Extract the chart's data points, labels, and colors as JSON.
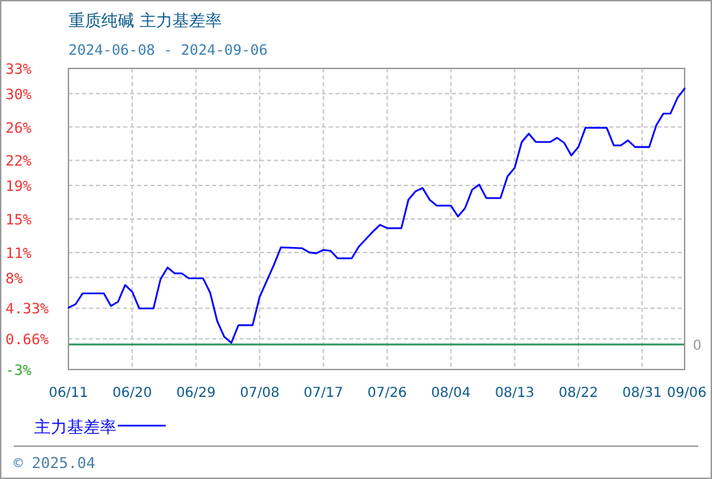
{
  "chart_data": {
    "type": "line",
    "title": "重质纯碱 主力基差率",
    "subtitle": "2024-06-08 - 2024-09-06",
    "annotations": [
      "© 2025.04"
    ],
    "x": [
      "2024-06-11",
      "2024-06-12",
      "2024-06-13",
      "2024-06-16",
      "2024-06-17",
      "2024-06-18",
      "2024-06-19",
      "2024-06-20",
      "2024-06-21",
      "2024-06-23",
      "2024-06-24",
      "2024-06-25",
      "2024-06-26",
      "2024-06-27",
      "2024-06-28",
      "2024-06-30",
      "2024-07-01",
      "2024-07-02",
      "2024-07-03",
      "2024-07-04",
      "2024-07-05",
      "2024-07-07",
      "2024-07-08",
      "2024-07-09",
      "2024-07-10",
      "2024-07-11",
      "2024-07-14",
      "2024-07-15",
      "2024-07-16",
      "2024-07-17",
      "2024-07-18",
      "2024-07-19",
      "2024-07-21",
      "2024-07-22",
      "2024-07-24",
      "2024-07-25",
      "2024-07-26",
      "2024-07-28",
      "2024-07-29",
      "2024-07-30",
      "2024-07-31",
      "2024-08-01",
      "2024-08-02",
      "2024-08-04",
      "2024-08-05",
      "2024-08-06",
      "2024-08-07",
      "2024-08-08",
      "2024-08-09",
      "2024-08-11",
      "2024-08-12",
      "2024-08-13",
      "2024-08-14",
      "2024-08-15",
      "2024-08-16",
      "2024-08-18",
      "2024-08-19",
      "2024-08-20",
      "2024-08-21",
      "2024-08-22",
      "2024-08-23",
      "2024-08-26",
      "2024-08-27",
      "2024-08-28",
      "2024-08-29",
      "2024-08-30",
      "2024-09-01",
      "2024-09-02",
      "2024-09-03",
      "2024-09-04",
      "2024-09-05",
      "2024-09-06"
    ],
    "series": [
      {
        "name": "主力基差率",
        "color": "#0000ff",
        "values": [
          4.4,
          4.8,
          6.1,
          6.1,
          4.6,
          5.1,
          7.1,
          6.3,
          4.3,
          4.3,
          7.8,
          9.2,
          8.5,
          8.5,
          7.9,
          7.9,
          6.2,
          2.8,
          0.9,
          0.2,
          2.3,
          2.3,
          5.7,
          7.6,
          9.5,
          11.6,
          11.5,
          11.0,
          10.9,
          11.3,
          11.2,
          10.3,
          10.3,
          11.7,
          13.5,
          14.3,
          13.9,
          13.9,
          17.3,
          18.3,
          18.7,
          17.3,
          16.6,
          16.6,
          15.3,
          16.3,
          18.5,
          19.1,
          17.5,
          17.5,
          20.1,
          21.1,
          24.2,
          25.2,
          24.2,
          24.2,
          24.7,
          24.1,
          22.6,
          23.6,
          25.9,
          25.9,
          23.8,
          23.8,
          24.4,
          23.6,
          23.6,
          26.2,
          27.6,
          27.6,
          29.5,
          30.6
        ]
      }
    ],
    "xlim": [
      "2024-06-11",
      "2024-09-06"
    ],
    "xticks": [
      {
        "value": "2024-06-11",
        "label": "06/11"
      },
      {
        "value": "2024-06-20",
        "label": "06/20"
      },
      {
        "value": "2024-06-29",
        "label": "06/29"
      },
      {
        "value": "2024-07-08",
        "label": "07/08"
      },
      {
        "value": "2024-07-17",
        "label": "07/17"
      },
      {
        "value": "2024-07-26",
        "label": "07/26"
      },
      {
        "value": "2024-08-04",
        "label": "08/04"
      },
      {
        "value": "2024-08-13",
        "label": "08/13"
      },
      {
        "value": "2024-08-22",
        "label": "08/22"
      },
      {
        "value": "2024-08-31",
        "label": "08/31"
      },
      {
        "value": "2024-09-06",
        "label": "09/06"
      }
    ],
    "ylim": [
      -3,
      33
    ],
    "yticks": [
      {
        "value": -3,
        "label": "-3%"
      },
      {
        "value": 0.66,
        "label": "0.66%"
      },
      {
        "value": 4.33,
        "label": "4.33%"
      },
      {
        "value": 8,
        "label": "8%"
      },
      {
        "value": 11,
        "label": "11%"
      },
      {
        "value": 15,
        "label": "15%"
      },
      {
        "value": 19,
        "label": "19%"
      },
      {
        "value": 22,
        "label": "22%"
      },
      {
        "value": 26,
        "label": "26%"
      },
      {
        "value": 30,
        "label": "30%"
      },
      {
        "value": 33,
        "label": "33%"
      }
    ],
    "grid": true,
    "legend": "bottom left",
    "ref_lines": [
      {
        "axis": "y",
        "value": 0,
        "label": "0",
        "color": "#339966"
      }
    ]
  }
}
